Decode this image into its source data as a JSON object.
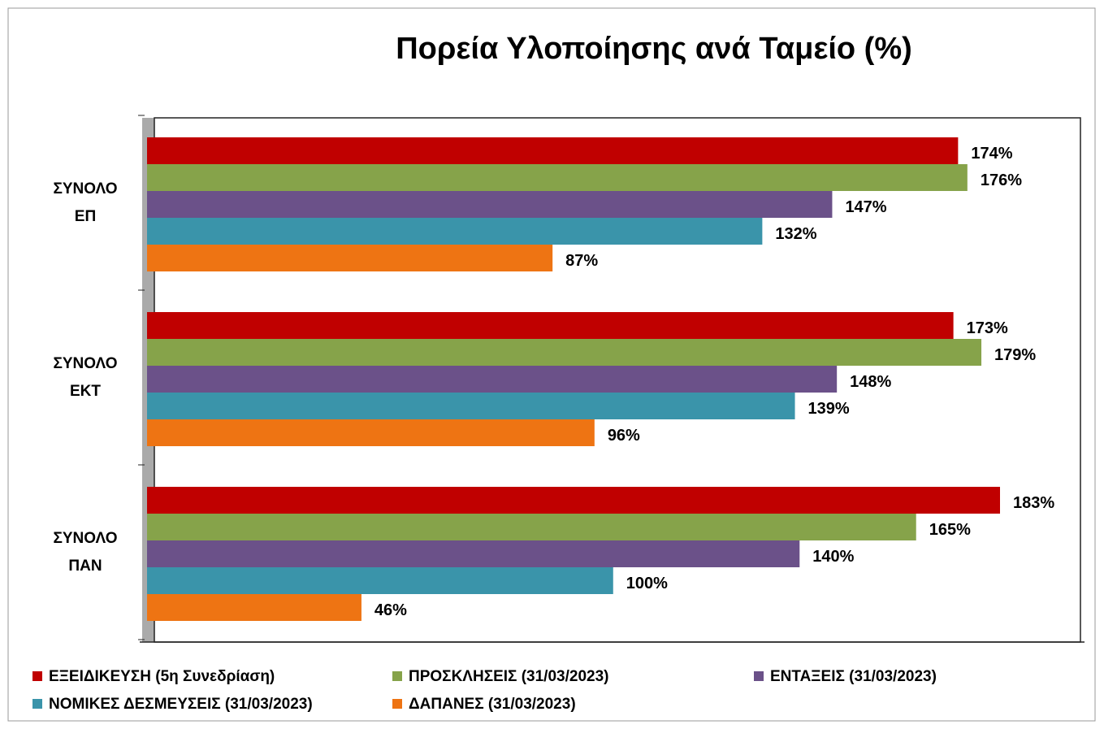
{
  "chart_data": {
    "type": "hbar",
    "title": "Πορεία  Υλοποίησης ανά Ταμείο (%)",
    "categories": [
      "ΣΥΝΟΛΟ\nΕΠ",
      "ΣΥΝΟΛΟ\nΕΚΤ",
      "ΣΥΝΟΛΟ\nΠΑΝ"
    ],
    "series": [
      {
        "name": "ΕΞΕΙΔΙΚΕΥΣΗ (5η Συνεδρίαση)",
        "color": "#c00000",
        "values": [
          174,
          173,
          183
        ],
        "value_labels": [
          "174%",
          "173%",
          "183%"
        ]
      },
      {
        "name": "ΠΡΟΣΚΛΗΣΕΙΣ (31/03/2023)",
        "color": "#86a34a",
        "values": [
          176,
          179,
          165
        ],
        "value_labels": [
          "176%",
          "179%",
          "165%"
        ]
      },
      {
        "name": "ΕΝΤΑΞΕΙΣ (31/03/2023)",
        "color": "#6b5189",
        "values": [
          147,
          148,
          140
        ],
        "value_labels": [
          "147%",
          "148%",
          "140%"
        ]
      },
      {
        "name": "ΝΟΜΙΚΕΣ ΔΕΣΜΕΥΣΕΙΣ (31/03/2023)",
        "color": "#3a94aa",
        "values": [
          132,
          139,
          100
        ],
        "value_labels": [
          "132%",
          "139%",
          "100%"
        ]
      },
      {
        "name": "ΔΑΠΑΝΕΣ  (31/03/2023)",
        "color": "#ee7413",
        "values": [
          87,
          96,
          46
        ],
        "value_labels": [
          "87%",
          "96%",
          "46%"
        ]
      }
    ]
  }
}
